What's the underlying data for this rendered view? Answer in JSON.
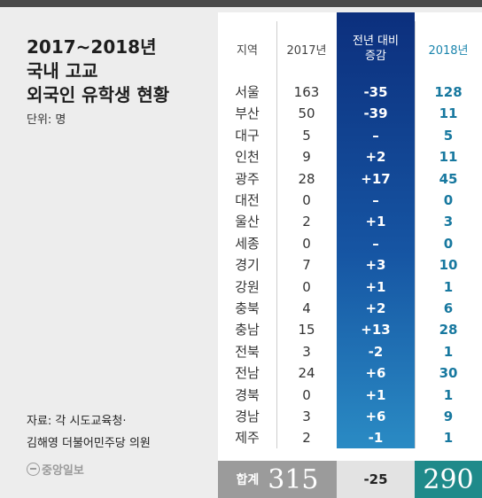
{
  "title_lines": [
    "2017~2018년",
    "국내 고교",
    "외국인 유학생 현황"
  ],
  "unit": "단위: 명",
  "source_lines": [
    "자료: 각 시도교육청·",
    "김해영 더불어민주당 의원"
  ],
  "publisher": "중앙일보",
  "colors": {
    "change_column_top": "#0c2f7d",
    "change_column_bottom": "#2a8bc4",
    "y2018_text": "#17789f",
    "total_left_bg": "#9b9b9b",
    "total_2018_bg": "#1f8a8a"
  },
  "chart_data": {
    "type": "table",
    "columns": [
      "지역",
      "2017년",
      "전년 대비 증감",
      "2018년"
    ],
    "rows": [
      {
        "region": "서울",
        "y2017": "163",
        "change": "-35",
        "y2018": "128"
      },
      {
        "region": "부산",
        "y2017": "50",
        "change": "-39",
        "y2018": "11"
      },
      {
        "region": "대구",
        "y2017": "5",
        "change": "–",
        "y2018": "5"
      },
      {
        "region": "인천",
        "y2017": "9",
        "change": "+2",
        "y2018": "11"
      },
      {
        "region": "광주",
        "y2017": "28",
        "change": "+17",
        "y2018": "45"
      },
      {
        "region": "대전",
        "y2017": "0",
        "change": "–",
        "y2018": "0"
      },
      {
        "region": "울산",
        "y2017": "2",
        "change": "+1",
        "y2018": "3"
      },
      {
        "region": "세종",
        "y2017": "0",
        "change": "–",
        "y2018": "0"
      },
      {
        "region": "경기",
        "y2017": "7",
        "change": "+3",
        "y2018": "10"
      },
      {
        "region": "강원",
        "y2017": "0",
        "change": "+1",
        "y2018": "1"
      },
      {
        "region": "충북",
        "y2017": "4",
        "change": "+2",
        "y2018": "6"
      },
      {
        "region": "충남",
        "y2017": "15",
        "change": "+13",
        "y2018": "28"
      },
      {
        "region": "전북",
        "y2017": "3",
        "change": "-2",
        "y2018": "1"
      },
      {
        "region": "전남",
        "y2017": "24",
        "change": "+6",
        "y2018": "30"
      },
      {
        "region": "경북",
        "y2017": "0",
        "change": "+1",
        "y2018": "1"
      },
      {
        "region": "경남",
        "y2017": "3",
        "change": "+6",
        "y2018": "9"
      },
      {
        "region": "제주",
        "y2017": "2",
        "change": "-1",
        "y2018": "1"
      }
    ],
    "total": {
      "label": "합계",
      "y2017": "315",
      "change": "-25",
      "y2018": "290"
    }
  }
}
